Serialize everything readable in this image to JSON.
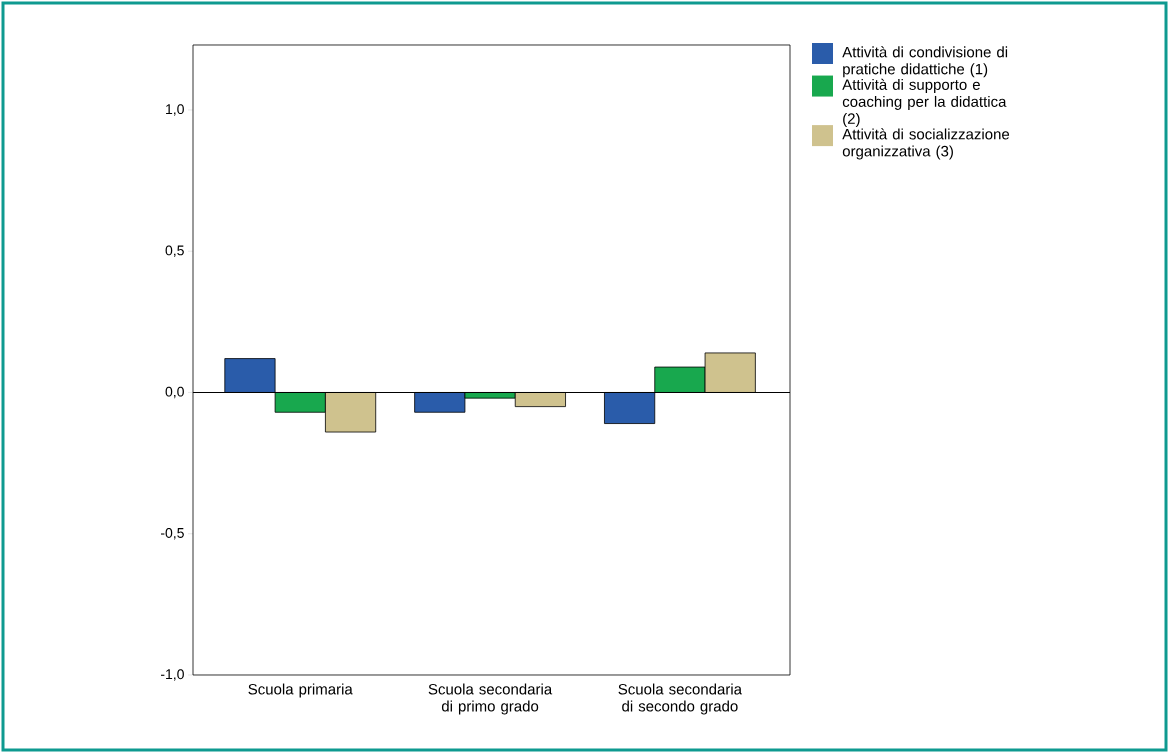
{
  "chart_data": {
    "type": "bar",
    "categories": [
      "Scuola primaria",
      "Scuola secondaria di primo grado",
      "Scuola secondaria di secondo grado"
    ],
    "series": [
      {
        "name": "Attività di condivisione di pratiche didattiche (1)",
        "color": "#2a5caa",
        "values": [
          0.12,
          -0.07,
          -0.11
        ]
      },
      {
        "name": "Attività di supporto e coaching per la didattica (2)",
        "color": "#18a84e",
        "values": [
          -0.07,
          -0.02,
          0.09
        ]
      },
      {
        "name": "Attività di socializzazione organizzativa (3)",
        "color": "#cfc28e",
        "values": [
          -0.14,
          -0.05,
          0.14
        ]
      }
    ],
    "ylim": [
      -1.0,
      1.23
    ],
    "yticks": [
      {
        "value": -1.0,
        "label": "-1,0"
      },
      {
        "value": -0.5,
        "label": "-0,5"
      },
      {
        "value": 0,
        "label": "0,0"
      },
      {
        "value": 0.5,
        "label": "0,5"
      },
      {
        "value": 1.0,
        "label": "1,0"
      }
    ],
    "ref_lines": [
      {
        "axis": "y",
        "value": 0
      }
    ],
    "grid": false,
    "legend": "top right"
  }
}
